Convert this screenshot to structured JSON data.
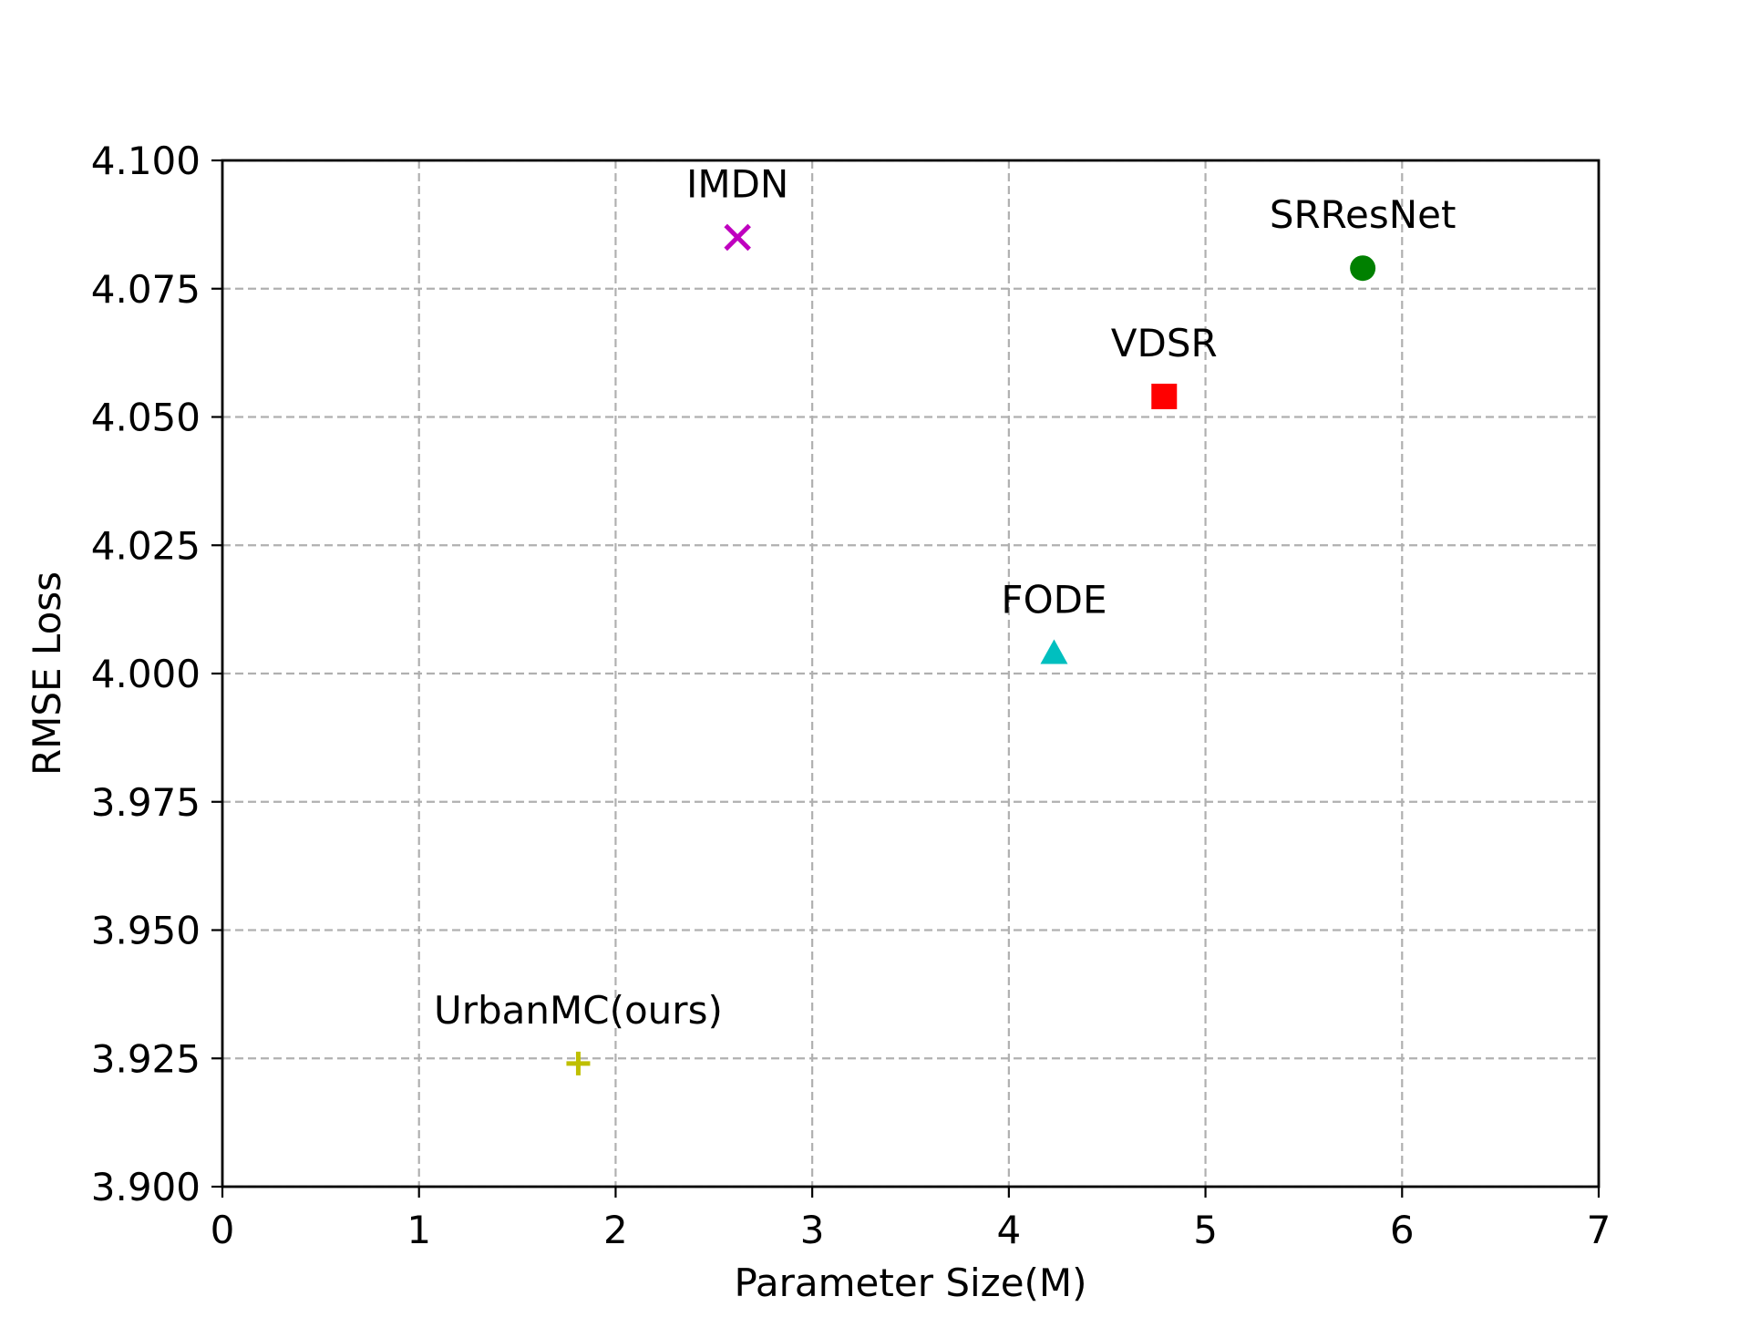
{
  "chart_data": {
    "type": "scatter",
    "title": "",
    "xlabel": "Parameter Size(M)",
    "ylabel": "RMSE Loss",
    "xlim": [
      0,
      7
    ],
    "ylim": [
      3.9,
      4.1
    ],
    "xticks": [
      "0",
      "1",
      "2",
      "3",
      "4",
      "5",
      "6",
      "7"
    ],
    "yticks": [
      "3.900",
      "3.925",
      "3.950",
      "3.975",
      "4.000",
      "4.025",
      "4.050",
      "4.075",
      "4.100"
    ],
    "grid": true,
    "points": [
      {
        "label": "IMDN",
        "x": 2.62,
        "y": 4.085,
        "marker": "x",
        "color": "#bf00bf"
      },
      {
        "label": "SRResNet",
        "x": 5.8,
        "y": 4.079,
        "marker": "circle",
        "color": "#008000"
      },
      {
        "label": "VDSR",
        "x": 4.79,
        "y": 4.054,
        "marker": "square",
        "color": "#ff0000"
      },
      {
        "label": "FODE",
        "x": 4.23,
        "y": 4.004,
        "marker": "triangle",
        "color": "#00bfbf"
      },
      {
        "label": "UrbanMC(ours)",
        "x": 1.81,
        "y": 3.924,
        "marker": "plus",
        "color": "#bfbf00"
      }
    ]
  }
}
